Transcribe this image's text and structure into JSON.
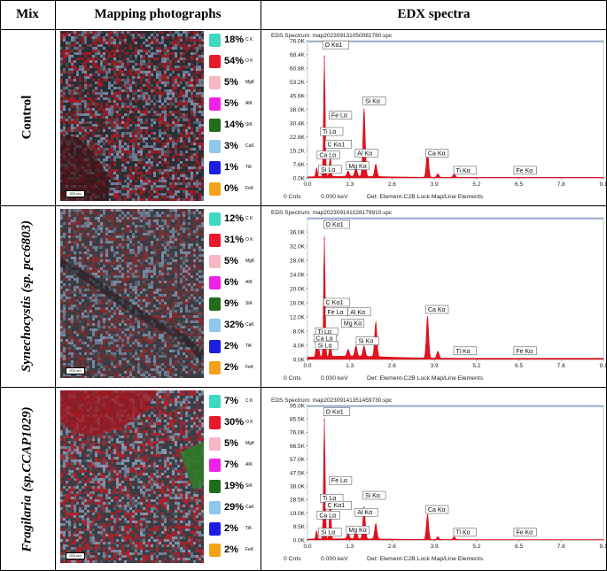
{
  "table": {
    "headers": {
      "mix": "Mix",
      "mapping": "Mapping photographs",
      "edx": "EDX spectra"
    }
  },
  "rows": [
    {
      "mix_label": "Control",
      "mix_italic": false,
      "map_scale": "200 um",
      "map_theme": {
        "base": "#2a2d33",
        "red": "#b11a22",
        "blue": "#7f97b7"
      },
      "legend": [
        {
          "pct": "18%",
          "el": "C K",
          "color": "#3fd9c2"
        },
        {
          "pct": "54%",
          "el": "O K",
          "color": "#e8192c"
        },
        {
          "pct": "5%",
          "el": "MgK",
          "color": "#f7b8c4"
        },
        {
          "pct": "5%",
          "el": "AlK",
          "color": "#ee22e8"
        },
        {
          "pct": "14%",
          "el": "SiK",
          "color": "#1f6d1a"
        },
        {
          "pct": "3%",
          "el": "CaK",
          "color": "#8fc6ef"
        },
        {
          "pct": "1%",
          "el": "TiK",
          "color": "#1b1ee0"
        },
        {
          "pct": "0%",
          "el": "FeK",
          "color": "#f5a21b"
        }
      ]
    },
    {
      "mix_label": "Synechocystis (sp. pcc6803)",
      "mix_italic": true,
      "map_scale": "200 um",
      "map_theme": {
        "base": "#3a3c42",
        "red": "#8d2a2f",
        "blue": "#8095b0"
      },
      "legend": [
        {
          "pct": "12%",
          "el": "C K",
          "color": "#3fd9c2"
        },
        {
          "pct": "31%",
          "el": "O K",
          "color": "#e8192c"
        },
        {
          "pct": "5%",
          "el": "MgK",
          "color": "#f7b8c4"
        },
        {
          "pct": "6%",
          "el": "AlK",
          "color": "#ee22e8"
        },
        {
          "pct": "9%",
          "el": "SiK",
          "color": "#1f6d1a"
        },
        {
          "pct": "32%",
          "el": "CaK",
          "color": "#8fc6ef"
        },
        {
          "pct": "2%",
          "el": "TiK",
          "color": "#1b1ee0"
        },
        {
          "pct": "2%",
          "el": "FeK",
          "color": "#f5a21b"
        }
      ]
    },
    {
      "mix_label": "Fragilaria (sp.CCAP1029)",
      "mix_italic": true,
      "map_scale": "200 um",
      "map_theme": {
        "base": "#3a3d44",
        "red": "#c21d27",
        "blue": "#8aa0ba"
      },
      "legend": [
        {
          "pct": "7%",
          "el": "C K",
          "color": "#3fd9c2"
        },
        {
          "pct": "30%",
          "el": "O K",
          "color": "#e8192c"
        },
        {
          "pct": "5%",
          "el": "MgK",
          "color": "#f7b8c4"
        },
        {
          "pct": "7%",
          "el": "AlK",
          "color": "#ee22e8"
        },
        {
          "pct": "19%",
          "el": "SiK",
          "color": "#1f6d1a"
        },
        {
          "pct": "29%",
          "el": "CaK",
          "color": "#8fc6ef"
        },
        {
          "pct": "2%",
          "el": "TiK",
          "color": "#1b1ee0"
        },
        {
          "pct": "2%",
          "el": "FeK",
          "color": "#f5a21b"
        }
      ]
    }
  ],
  "chart_data": [
    {
      "type": "line",
      "title": "EDS Spectrum: map20230913105008278​0.spc",
      "footer": {
        "cnts": "0 Cnts",
        "kev": "0.000 keV",
        "det": "Det: Element-C2B Lock Map/Line Elements"
      },
      "xlim": [
        0,
        9.1
      ],
      "ylim": [
        0,
        76.0
      ],
      "x_ticks": [
        "0.0",
        "1.3",
        "2.6",
        "3.9",
        "5.2",
        "6.5",
        "7.8",
        "9.1"
      ],
      "y_ticks": [
        "0.0K",
        "7.6K",
        "15.2K",
        "22.8K",
        "30.4K",
        "38.0K",
        "45.6K",
        "53.2K",
        "60.8K",
        "68.4K",
        "76.0K"
      ],
      "peaks": [
        {
          "x": 0.28,
          "y": 5
        },
        {
          "x": 0.52,
          "y": 67
        },
        {
          "x": 0.7,
          "y": 12
        },
        {
          "x": 1.25,
          "y": 3
        },
        {
          "x": 1.49,
          "y": 5
        },
        {
          "x": 1.74,
          "y": 38
        },
        {
          "x": 2.1,
          "y": 7
        },
        {
          "x": 3.69,
          "y": 15
        },
        {
          "x": 4.01,
          "y": 2
        },
        {
          "x": 4.51,
          "y": 2
        }
      ],
      "annotations": [
        {
          "label": "O  Kα1",
          "x": 0.52,
          "y": 72.5
        },
        {
          "label": "Fe Lα",
          "x": 0.72,
          "y": 33.5
        },
        {
          "label": "Si Kα",
          "x": 1.76,
          "y": 41.5
        },
        {
          "label": "Ti Lα",
          "x": 0.45,
          "y": 24.5
        },
        {
          "label": "C  Kα1",
          "x": 0.6,
          "y": 17.5
        },
        {
          "label": "Ca Lα",
          "x": 0.35,
          "y": 11.5
        },
        {
          "label": "Al Kα",
          "x": 1.52,
          "y": 12.5
        },
        {
          "label": "Mg Kα",
          "x": 1.25,
          "y": 5.5
        },
        {
          "label": "Si Lα",
          "x": 0.4,
          "y": 3.5
        },
        {
          "label": "Ca Kα",
          "x": 3.69,
          "y": 12.5
        },
        {
          "label": "Ti Kα",
          "x": 4.55,
          "y": 3.0
        },
        {
          "label": "Fe Kα",
          "x": 6.4,
          "y": 3.0
        }
      ]
    },
    {
      "type": "line",
      "title": "EDS Spectrum: map20230914102817991​0.spc",
      "footer": {
        "cnts": "0 Cnts",
        "kev": "0.000 keV",
        "det": "Det: Element-C2B Lock Map/Line Elements"
      },
      "xlim": [
        0,
        9.1
      ],
      "ylim": [
        0,
        40.0
      ],
      "x_ticks": [
        "0.0",
        "1.3",
        "2.6",
        "3.9",
        "5.2",
        "6.5",
        "7.8",
        "9.1"
      ],
      "y_ticks": [
        "0.0K",
        "4.0K",
        "8.0K",
        "12.0K",
        "16.0K",
        "20.0K",
        "24.0K",
        "28.0K",
        "32.0K",
        "36.0K"
      ],
      "peaks": [
        {
          "x": 0.28,
          "y": 4
        },
        {
          "x": 0.34,
          "y": 3
        },
        {
          "x": 0.52,
          "y": 34
        },
        {
          "x": 0.7,
          "y": 5
        },
        {
          "x": 1.25,
          "y": 2
        },
        {
          "x": 1.49,
          "y": 3
        },
        {
          "x": 1.74,
          "y": 3
        },
        {
          "x": 2.1,
          "y": 10
        },
        {
          "x": 3.69,
          "y": 12
        },
        {
          "x": 4.01,
          "y": 2
        }
      ],
      "annotations": [
        {
          "label": "O  Kα1",
          "x": 0.55,
          "y": 37.5
        },
        {
          "label": "C  Kα1",
          "x": 0.55,
          "y": 15.5
        },
        {
          "label": "Fe Lα",
          "x": 0.6,
          "y": 12.8
        },
        {
          "label": "Al Kα",
          "x": 1.3,
          "y": 12.8
        },
        {
          "label": "Mg Kα",
          "x": 1.1,
          "y": 9.6
        },
        {
          "label": "Ti Lα",
          "x": 0.3,
          "y": 7.2
        },
        {
          "label": "Ca Lα",
          "x": 0.25,
          "y": 5.4
        },
        {
          "label": "Si Kα",
          "x": 1.55,
          "y": 4.6
        },
        {
          "label": "Si Lα",
          "x": 0.3,
          "y": 3.4
        },
        {
          "label": "Ca Kα",
          "x": 3.69,
          "y": 13.5
        },
        {
          "label": "Ti Kα",
          "x": 4.55,
          "y": 1.8
        },
        {
          "label": "Fe Kα",
          "x": 6.4,
          "y": 1.8
        }
      ]
    },
    {
      "type": "line",
      "title": "EDS Spectrum: map20230914135145973​0.spc",
      "footer": {
        "cnts": "0 Cnts",
        "kev": "0.000 keV",
        "det": "Det: Element-C2B Lock Map/Line Elements"
      },
      "xlim": [
        0,
        9.1
      ],
      "ylim": [
        0,
        95.0
      ],
      "x_ticks": [
        "0.0",
        "1.3",
        "2.6",
        "3.9",
        "5.2",
        "6.5",
        "7.8",
        "9.1"
      ],
      "y_ticks": [
        "0.0K",
        "9.5K",
        "19.0K",
        "28.5K",
        "38.0K",
        "47.5K",
        "57.0K",
        "66.5K",
        "76.0K",
        "85.5K",
        "95.0K"
      ],
      "peaks": [
        {
          "x": 0.28,
          "y": 6
        },
        {
          "x": 0.52,
          "y": 85
        },
        {
          "x": 0.7,
          "y": 30
        },
        {
          "x": 1.25,
          "y": 4
        },
        {
          "x": 1.49,
          "y": 6
        },
        {
          "x": 1.74,
          "y": 23
        },
        {
          "x": 2.1,
          "y": 11
        },
        {
          "x": 3.69,
          "y": 18
        },
        {
          "x": 4.01,
          "y": 2
        },
        {
          "x": 4.51,
          "y": 2
        }
      ],
      "annotations": [
        {
          "label": "O  Kα1",
          "x": 0.55,
          "y": 89.0
        },
        {
          "label": "Fe Lα",
          "x": 0.72,
          "y": 40.5
        },
        {
          "label": "Si Kα",
          "x": 1.76,
          "y": 30.0
        },
        {
          "label": "Ti Lα",
          "x": 0.45,
          "y": 28.0
        },
        {
          "label": "C  Kα1",
          "x": 0.6,
          "y": 23.0
        },
        {
          "label": "Ca Lα",
          "x": 0.35,
          "y": 16.0
        },
        {
          "label": "Al Kα",
          "x": 1.52,
          "y": 18.0
        },
        {
          "label": "Mg Kα",
          "x": 1.25,
          "y": 5.5
        },
        {
          "label": "Si Lα",
          "x": 0.4,
          "y": 4.0
        },
        {
          "label": "Ca Kα",
          "x": 3.69,
          "y": 20.0
        },
        {
          "label": "Ti Kα",
          "x": 4.55,
          "y": 4.0
        },
        {
          "label": "Fe Kα",
          "x": 6.4,
          "y": 4.0
        }
      ]
    }
  ]
}
